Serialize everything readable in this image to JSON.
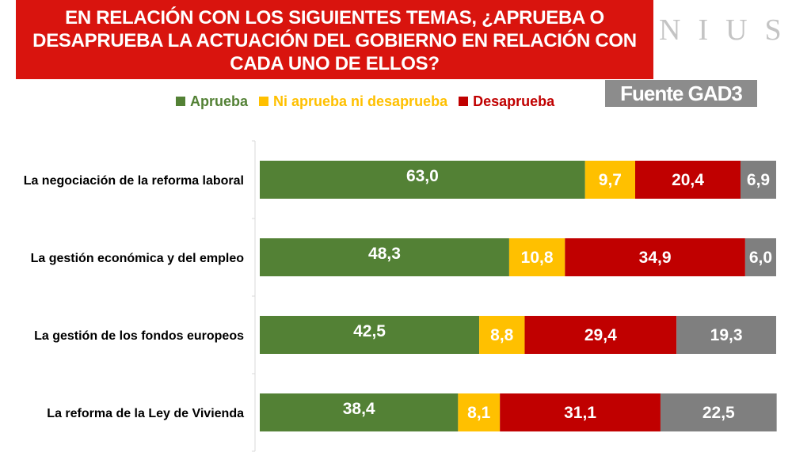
{
  "title": "EN RELACIÓN CON LOS SIGUIENTES TEMAS, ¿APRUEBA O DESAPRUEBA LA ACTUACIÓN DEL GOBIERNO EN RELACIÓN CON CADA UNO DE ELLOS?",
  "brand": "NIUS",
  "source": "Fuente GAD3",
  "colors": {
    "title_bg": "#d9140e",
    "aprueba": "#538135",
    "ni": "#ffc000",
    "desaprueba": "#c00000",
    "ns": "#7f7f7f"
  },
  "chart_data": {
    "type": "bar",
    "orientation": "horizontal",
    "stacked": true,
    "categories": [
      "La negociación de la reforma laboral",
      "La gestión económica y del empleo",
      "La gestión de los fondos europeos",
      "La reforma de la Ley de Vivienda"
    ],
    "series": [
      {
        "name": "Aprueba",
        "color": "#538135",
        "values": [
          63.0,
          48.3,
          42.5,
          38.4
        ],
        "labels": [
          "63,0",
          "48,3",
          "42,5",
          "38,4"
        ]
      },
      {
        "name": "Ni aprueba ni desaprueba",
        "color": "#ffc000",
        "values": [
          9.7,
          10.8,
          8.8,
          8.1
        ],
        "labels": [
          "9,7",
          "10,8",
          "8,8",
          "8,1"
        ]
      },
      {
        "name": "Desaprueba",
        "color": "#c00000",
        "values": [
          20.4,
          34.9,
          29.4,
          31.1
        ],
        "labels": [
          "20,4",
          "34,9",
          "29,4",
          "31,1"
        ]
      },
      {
        "name": "",
        "color": "#7f7f7f",
        "values": [
          6.9,
          6.0,
          19.3,
          22.5
        ],
        "labels": [
          "6,9",
          "6,0",
          "19,3",
          "22,5"
        ]
      }
    ],
    "xlim": [
      0,
      100
    ],
    "legend": "top",
    "grid": false
  }
}
